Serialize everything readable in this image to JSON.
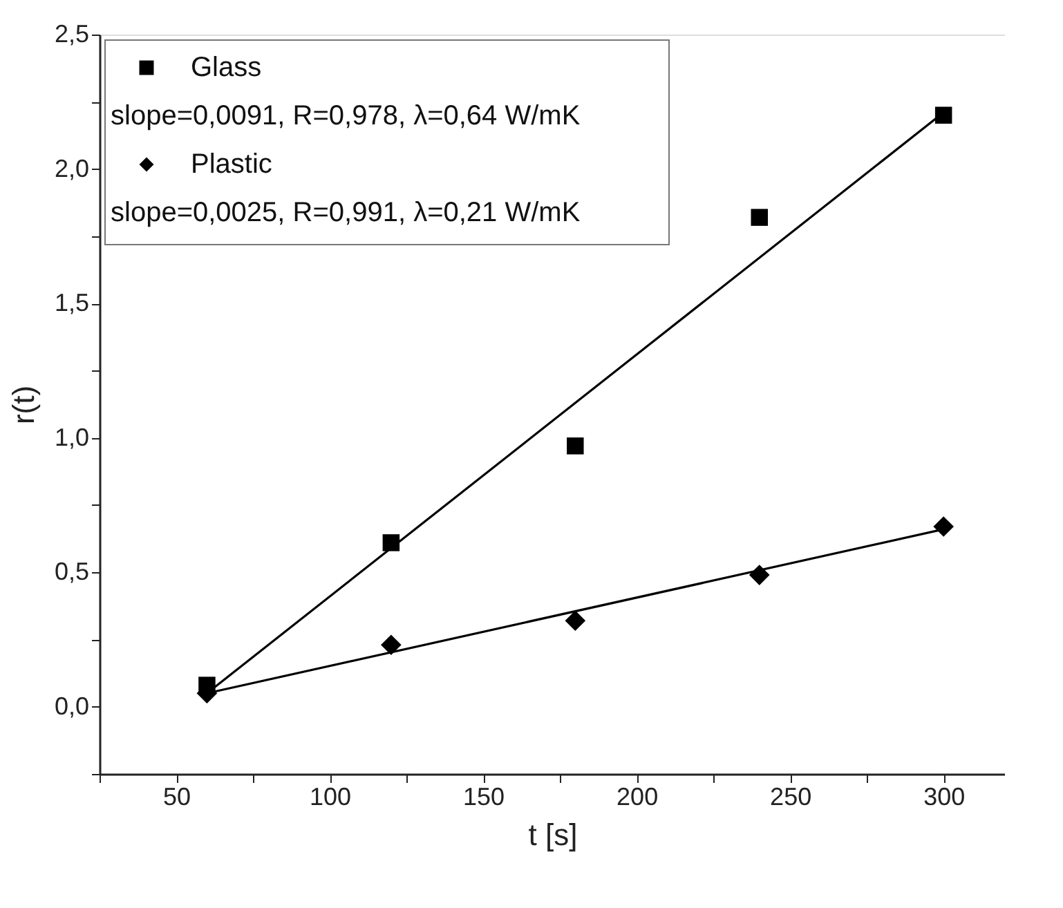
{
  "chart_data": {
    "type": "scatter",
    "xlabel": "t [s]",
    "ylabel": "r(t)",
    "xlim": [
      25,
      320
    ],
    "ylim": [
      -0.25,
      2.5
    ],
    "xticks": [
      {
        "value": 25,
        "label": null
      },
      50,
      {
        "value": 75,
        "label": null
      },
      100,
      {
        "value": 125,
        "label": null
      },
      150,
      {
        "value": 175,
        "label": null
      },
      200,
      {
        "value": 225,
        "label": null
      },
      250,
      {
        "value": 275,
        "label": null
      },
      300
    ],
    "yticks": [
      {
        "value": -0.25,
        "label": null
      },
      {
        "value": 0,
        "label": "0,0"
      },
      {
        "value": 0.25,
        "label": null
      },
      {
        "value": 0.5,
        "label": "0,5"
      },
      {
        "value": 0.75,
        "label": null
      },
      {
        "value": 1.0,
        "label": "1,0"
      },
      {
        "value": 1.25,
        "label": null
      },
      {
        "value": 1.5,
        "label": "1,5"
      },
      {
        "value": 1.75,
        "label": null
      },
      {
        "value": 2.0,
        "label": "2,0"
      },
      {
        "value": 2.25,
        "label": null
      },
      {
        "value": 2.5,
        "label": "2,5"
      }
    ],
    "grid": false,
    "legend": "top left",
    "annotations": [
      "slope=0,0091, R=0,978, λ=0,64 W/mK",
      "slope=0,0025, R=0,991, λ=0,21 W/mK"
    ],
    "series": [
      {
        "name": "Glass",
        "type": "scatter",
        "marker": "square",
        "color": "#000000",
        "x": [
          60,
          120,
          180,
          240,
          300
        ],
        "values": [
          0.08,
          0.61,
          0.97,
          1.82,
          2.2
        ]
      },
      {
        "name": "Plastic",
        "type": "scatter",
        "marker": "diamond",
        "color": "#000000",
        "x": [
          60,
          120,
          180,
          240,
          300
        ],
        "values": [
          0.05,
          0.23,
          0.32,
          0.49,
          0.67
        ]
      },
      {
        "type": "line",
        "color": "#000000",
        "line_style": "solid",
        "x": [
          60,
          300
        ],
        "values": [
          0.05,
          2.21
        ]
      },
      {
        "type": "line",
        "color": "#000000",
        "line_style": "solid",
        "x": [
          60,
          300
        ],
        "values": [
          0.05,
          0.66
        ]
      }
    ]
  }
}
